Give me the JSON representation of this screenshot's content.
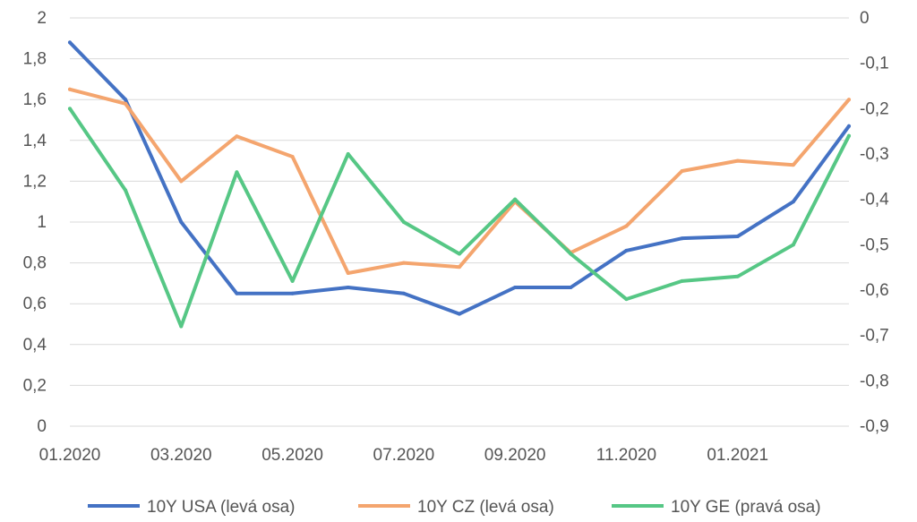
{
  "chart_data": {
    "type": "line",
    "title": "",
    "xlabel": "",
    "ylabel": "",
    "x_tick_labels": [
      "01.2020",
      "03.2020",
      "05.2020",
      "07.2020",
      "09.2020",
      "11.2020",
      "01.2021"
    ],
    "x": [
      "01.2020",
      "02.2020",
      "03.2020",
      "04.2020",
      "05.2020",
      "06.2020",
      "07.2020",
      "08.2020",
      "09.2020",
      "10.2020",
      "11.2020",
      "12.2020",
      "01.2021",
      "02.2021",
      "03.2021"
    ],
    "left_axis": {
      "ylim": [
        0,
        2
      ],
      "ticks": [
        "0",
        "0,2",
        "0,4",
        "0,6",
        "0,8",
        "1",
        "1,2",
        "1,4",
        "1,6",
        "1,8",
        "2"
      ]
    },
    "right_axis": {
      "ylim": [
        -0.9,
        0
      ],
      "ticks": [
        "-0,9",
        "-0,8",
        "-0,7",
        "-0,6",
        "-0,5",
        "-0,4",
        "-0,3",
        "-0,2",
        "-0,1",
        "0"
      ]
    },
    "grid": true,
    "legend_position": "bottom",
    "series": [
      {
        "name": "10Y USA (levá osa)",
        "axis": "left",
        "color": "#4472C4",
        "values": [
          1.88,
          1.6,
          1.0,
          0.65,
          0.65,
          0.68,
          0.65,
          0.55,
          0.68,
          0.68,
          0.86,
          0.92,
          0.93,
          1.1,
          1.47
        ]
      },
      {
        "name": "10Y CZ (levá osa)",
        "axis": "left",
        "color": "#F4A56E",
        "values": [
          1.65,
          1.58,
          1.2,
          1.42,
          1.32,
          0.75,
          0.8,
          0.78,
          1.1,
          0.85,
          0.98,
          1.25,
          1.3,
          1.28,
          1.6
        ]
      },
      {
        "name": "10Y GE (pravá osa)",
        "axis": "right",
        "color": "#56C785",
        "values": [
          -0.2,
          -0.38,
          -0.68,
          -0.34,
          -0.58,
          -0.3,
          -0.45,
          -0.52,
          -0.4,
          -0.52,
          -0.62,
          -0.58,
          -0.57,
          -0.5,
          -0.26
        ]
      }
    ]
  }
}
